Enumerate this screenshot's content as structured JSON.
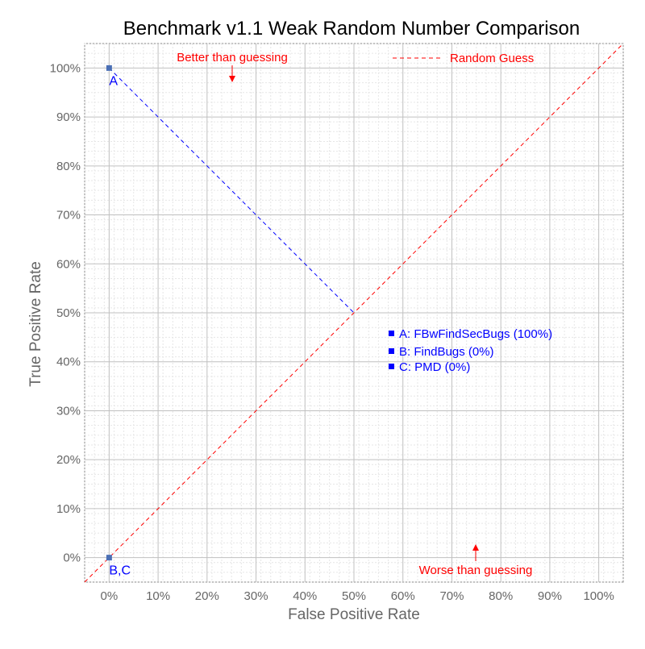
{
  "chart_data": {
    "type": "scatter",
    "title": "Benchmark v1.1 Weak Random Number Comparison",
    "xlabel": "False Positive Rate",
    "ylabel": "True Positive Rate",
    "xlim": [
      -5,
      105
    ],
    "ylim": [
      -5,
      105
    ],
    "x_ticks": [
      0,
      10,
      20,
      30,
      40,
      50,
      60,
      70,
      80,
      90,
      100
    ],
    "y_ticks": [
      0,
      10,
      20,
      30,
      40,
      50,
      60,
      70,
      80,
      90,
      100
    ],
    "tick_suffix": "%",
    "grid": true,
    "minor_grid": true,
    "points": [
      {
        "label": "A",
        "x": 0,
        "y": 100
      },
      {
        "label": "B,C",
        "x": 0,
        "y": 0
      }
    ],
    "projection_line": {
      "from": [
        0,
        100
      ],
      "to": [
        50,
        50
      ],
      "color": "#0000ff"
    },
    "random_guess": {
      "label": "Random Guess",
      "from": [
        -5,
        -5
      ],
      "to": [
        105,
        105
      ],
      "color": "#ff0000"
    },
    "annotations": {
      "better": "Better than guessing",
      "worse": "Worse than guessing"
    },
    "legend": {
      "placement": "center-right",
      "entries": [
        "A: FBwFindSecBugs (100%)",
        "B: FindBugs (0%)",
        "C: PMD (0%)"
      ]
    },
    "colors": {
      "point": "#4a6fb5",
      "text_blue": "#0000ff",
      "text_red": "#ff0000",
      "axis_text": "#666666"
    }
  }
}
